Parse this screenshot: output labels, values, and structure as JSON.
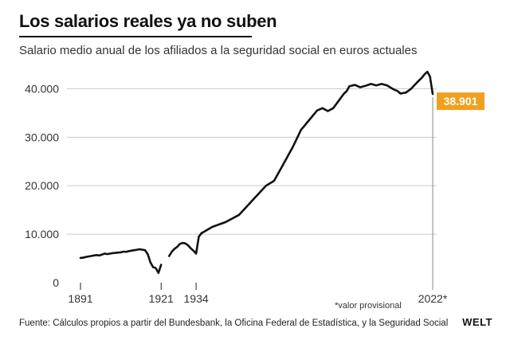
{
  "chart_data": {
    "type": "line",
    "title": "Los salarios reales ya no suben",
    "subtitle": "Salario medio anual de los afiliados a la seguridad social en euros actuales",
    "xlabel": "",
    "ylabel": "",
    "xlim": [
      1891,
      2022
    ],
    "ylim": [
      0,
      45000
    ],
    "x_ticks": [
      1891,
      1921,
      1934,
      2022
    ],
    "x_tick_labels": [
      "1891",
      "1921",
      "1934",
      "2022*"
    ],
    "y_ticks": [
      0,
      10000,
      20000,
      30000,
      40000
    ],
    "y_tick_labels": [
      "0",
      "10.000",
      "20.000",
      "30.000",
      "40.000"
    ],
    "end_label": "38.901",
    "end_value": 38901,
    "colors": {
      "line": "#111111",
      "grid": "#cccccc",
      "highlight": "#f0a020"
    },
    "series": [
      {
        "name": "Salario medio anual",
        "segments": [
          [
            [
              1891,
              5100
            ],
            [
              1892,
              5150
            ],
            [
              1893,
              5300
            ],
            [
              1894,
              5400
            ],
            [
              1895,
              5500
            ],
            [
              1896,
              5600
            ],
            [
              1897,
              5700
            ],
            [
              1898,
              5600
            ],
            [
              1899,
              5800
            ],
            [
              1900,
              6000
            ],
            [
              1901,
              5900
            ],
            [
              1902,
              6000
            ],
            [
              1903,
              6100
            ],
            [
              1904,
              6150
            ],
            [
              1905,
              6200
            ],
            [
              1906,
              6250
            ],
            [
              1907,
              6400
            ],
            [
              1908,
              6350
            ],
            [
              1909,
              6500
            ],
            [
              1910,
              6600
            ],
            [
              1911,
              6700
            ],
            [
              1912,
              6800
            ],
            [
              1913,
              6900
            ],
            [
              1914,
              6800
            ],
            [
              1915,
              6700
            ],
            [
              1916,
              5900
            ],
            [
              1917,
              4200
            ],
            [
              1918,
              3200
            ],
            [
              1919,
              3000
            ],
            [
              1920,
              2000
            ],
            [
              1921,
              3700
            ]
          ],
          [
            [
              1924,
              5500
            ],
            [
              1925,
              6400
            ],
            [
              1926,
              7000
            ],
            [
              1927,
              7400
            ],
            [
              1928,
              8000
            ],
            [
              1929,
              8200
            ],
            [
              1930,
              8100
            ],
            [
              1931,
              7700
            ],
            [
              1932,
              7100
            ],
            [
              1933,
              6600
            ],
            [
              1934,
              6000
            ],
            [
              1935,
              9500
            ],
            [
              1936,
              10200
            ]
          ]
        ],
        "points": [
          [
            1936,
            10200
          ],
          [
            1940,
            11500
          ],
          [
            1945,
            12500
          ],
          [
            1950,
            14000
          ],
          [
            1955,
            17000
          ],
          [
            1960,
            20000
          ],
          [
            1963,
            21000
          ],
          [
            1966,
            24000
          ],
          [
            1970,
            28000
          ],
          [
            1973,
            31500
          ],
          [
            1976,
            33500
          ],
          [
            1979,
            35500
          ],
          [
            1981,
            36000
          ],
          [
            1983,
            35400
          ],
          [
            1985,
            36000
          ],
          [
            1987,
            37500
          ],
          [
            1989,
            39000
          ],
          [
            1990,
            39500
          ],
          [
            1991,
            40500
          ],
          [
            1993,
            40800
          ],
          [
            1995,
            40300
          ],
          [
            1997,
            40600
          ],
          [
            1999,
            41000
          ],
          [
            2001,
            40700
          ],
          [
            2003,
            41000
          ],
          [
            2005,
            40700
          ],
          [
            2007,
            40000
          ],
          [
            2009,
            39500
          ],
          [
            2010,
            39000
          ],
          [
            2012,
            39200
          ],
          [
            2014,
            40000
          ],
          [
            2016,
            41200
          ],
          [
            2018,
            42300
          ],
          [
            2019,
            43000
          ],
          [
            2020,
            43500
          ],
          [
            2021,
            42500
          ],
          [
            2022,
            38901
          ]
        ]
      }
    ]
  },
  "footnote": "*valor provisional",
  "source": "Fuente: Cálculos propios a partir del Bundesbank, la Oficina Federal de Estadística, y la Seguridad Social",
  "brand": "WELT"
}
